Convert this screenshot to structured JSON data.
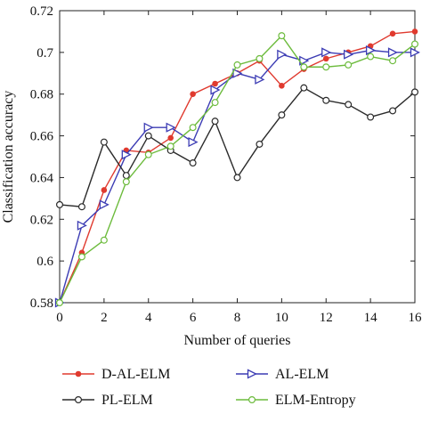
{
  "chart_data": {
    "type": "line",
    "xlabel": "Number of queries",
    "ylabel": "Classification accuracy",
    "xlim": [
      0,
      16
    ],
    "ylim": [
      0.58,
      0.72
    ],
    "xticks": [
      0,
      2,
      4,
      6,
      8,
      10,
      12,
      14,
      16
    ],
    "yticks": [
      0.58,
      0.6,
      0.62,
      0.64,
      0.66,
      0.68,
      0.7,
      0.72
    ],
    "ytick_labels": [
      "0.58",
      "0.6",
      "0.62",
      "0.64",
      "0.66",
      "0.68",
      "0.7",
      "0.72"
    ],
    "grid": false,
    "legend_position": "bottom",
    "x": [
      0,
      1,
      2,
      3,
      4,
      5,
      6,
      7,
      8,
      9,
      10,
      11,
      12,
      13,
      14,
      15,
      16
    ],
    "series": [
      {
        "name": "D-AL-ELM",
        "color": "#e03a2f",
        "marker": "dot",
        "values": [
          0.58,
          0.604,
          0.634,
          0.653,
          0.652,
          0.659,
          0.68,
          0.685,
          0.69,
          0.696,
          0.684,
          0.692,
          0.697,
          0.7,
          0.703,
          0.709,
          0.71
        ]
      },
      {
        "name": "AL-ELM",
        "color": "#3c3cb4",
        "marker": "triangle-right",
        "values": [
          0.58,
          0.617,
          0.627,
          0.651,
          0.664,
          0.664,
          0.657,
          0.682,
          0.69,
          0.687,
          0.699,
          0.696,
          0.7,
          0.699,
          0.701,
          0.7,
          0.7
        ]
      },
      {
        "name": "PL-ELM",
        "color": "#2b2b2b",
        "marker": "circle",
        "values": [
          0.627,
          0.626,
          0.657,
          0.641,
          0.66,
          0.653,
          0.647,
          0.667,
          0.64,
          0.656,
          0.67,
          0.683,
          0.677,
          0.675,
          0.669,
          0.672,
          0.681
        ]
      },
      {
        "name": "ELM-Entropy",
        "color": "#6cbb3c",
        "marker": "circle",
        "values": [
          0.58,
          0.602,
          0.61,
          0.638,
          0.651,
          0.655,
          0.664,
          0.676,
          0.694,
          0.697,
          0.708,
          0.693,
          0.693,
          0.694,
          0.698,
          0.696,
          0.704
        ]
      }
    ]
  }
}
